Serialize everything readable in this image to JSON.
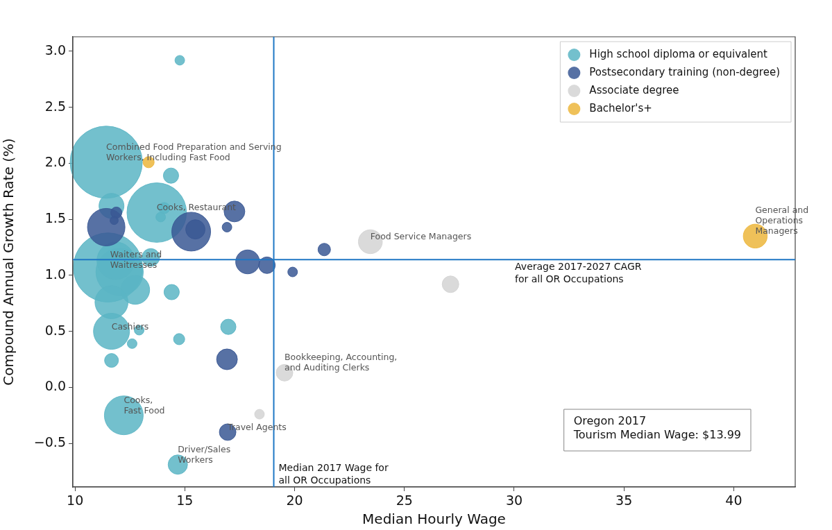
{
  "chart_data": {
    "type": "bubble",
    "xlabel": "Median Hourly Wage",
    "ylabel": "Compound Annual Growth Rate (%)",
    "xlim": [
      9.9,
      42.8
    ],
    "ylim": [
      -0.89,
      3.13
    ],
    "xticks": [
      10,
      15,
      20,
      25,
      30,
      35,
      40
    ],
    "yticks": [
      {
        "value": -0.5,
        "label": "−0.5"
      },
      {
        "value": 0,
        "label": "0.0"
      },
      {
        "value": 0.5,
        "label": "0.5"
      },
      {
        "value": 1,
        "label": "1.0"
      },
      {
        "value": 1.5,
        "label": "1.5"
      },
      {
        "value": 2,
        "label": "2.0"
      },
      {
        "value": 2.5,
        "label": "2.5"
      },
      {
        "value": 3,
        "label": "3.0"
      }
    ],
    "grid": false,
    "legend": "top right",
    "marker": "circle",
    "series": [
      {
        "name": "High school diploma or equivalent",
        "color": "#5bb5c4",
        "x": [
          14.77,
          11.42,
          14.37,
          11.66,
          13.72,
          14.06,
          13.9,
          11.5,
          12.03,
          11.85,
          13.45,
          12.74,
          11.66,
          14.4,
          11.66,
          12.92,
          12.6,
          14.74,
          16.98,
          11.66,
          12.22,
          14.68
        ],
        "values": [
          2.92,
          2.01,
          1.89,
          1.62,
          1.56,
          1.6,
          1.52,
          1.07,
          1.03,
          1.13,
          1.16,
          0.87,
          0.76,
          0.85,
          0.5,
          0.51,
          0.39,
          0.43,
          0.54,
          0.24,
          -0.25,
          -0.69
        ],
        "sizes": [
          0.018,
          1,
          0.045,
          0.12,
          0.68,
          0.024,
          0.018,
          0.92,
          0.43,
          0.27,
          0.06,
          0.16,
          0.21,
          0.045,
          0.25,
          0.018,
          0.018,
          0.024,
          0.045,
          0.037,
          0.29,
          0.072
        ]
      },
      {
        "name": "Postsecondary training (non-degree)",
        "color": "#3a5894",
        "x": [
          11.42,
          11.88,
          11.78,
          15.29,
          15.48,
          17.26,
          16.92,
          17.86,
          18.74,
          19.91,
          21.35,
          16.92,
          16.95
        ],
        "values": [
          1.43,
          1.56,
          1.49,
          1.39,
          1.41,
          1.57,
          1.43,
          1.12,
          1.09,
          1.03,
          1.23,
          0.25,
          -0.4
        ],
        "sizes": [
          0.27,
          0.024,
          0.013,
          0.29,
          0.072,
          0.083,
          0.018,
          0.11,
          0.053,
          0.018,
          0.03,
          0.083,
          0.053
        ]
      },
      {
        "name": "Associate degree",
        "color": "#d3d3d3",
        "x": [
          23.45,
          27.1,
          19.54,
          18.4
        ],
        "values": [
          1.3,
          0.92,
          0.13,
          -0.24
        ],
        "sizes": [
          0.11,
          0.053,
          0.053,
          0.018
        ]
      },
      {
        "name": "Bachelor's+",
        "color": "#ecb63c",
        "x": [
          13.35,
          40.98
        ],
        "values": [
          2.01,
          1.35
        ],
        "sizes": [
          0.024,
          0.11
        ]
      }
    ],
    "ref_lines": [
      {
        "axis": "x",
        "value": 19.05,
        "label": "Median 2017 Wage for\nall OR Occupations",
        "color": "#1f77c4"
      },
      {
        "axis": "y",
        "value": 1.14,
        "label": "Average 2017-2027 CAGR\nfor all OR Occupations",
        "color": "#1f77c4"
      }
    ],
    "annotations": [
      {
        "text": "Combined Food Preparation and Serving\nWorkers, Including Fast Food",
        "x": 11.42,
        "y": 2.01
      },
      {
        "text": "Cooks, Restaurant",
        "x": 13.72,
        "y": 1.56
      },
      {
        "text": "Waiters and\nWaitresses",
        "x": 11.6,
        "y": 1.05
      },
      {
        "text": "Cashiers",
        "x": 11.66,
        "y": 0.5
      },
      {
        "text": "Cooks,\nFast Food",
        "x": 12.22,
        "y": -0.25
      },
      {
        "text": "Driver/Sales\nWorkers",
        "x": 14.68,
        "y": -0.69
      },
      {
        "text": "Travel Agents",
        "x": 16.95,
        "y": -0.4
      },
      {
        "text": "Bookkeeping, Accounting,\nand Auditing Clerks",
        "x": 19.54,
        "y": 0.13
      },
      {
        "text": "Food Service Managers",
        "x": 23.45,
        "y": 1.3
      },
      {
        "text": "General and\nOperations\nManagers",
        "x": 40.98,
        "y": 1.35
      },
      "Oregon 2017\nTourism Median Wage: $13.99"
    ]
  }
}
